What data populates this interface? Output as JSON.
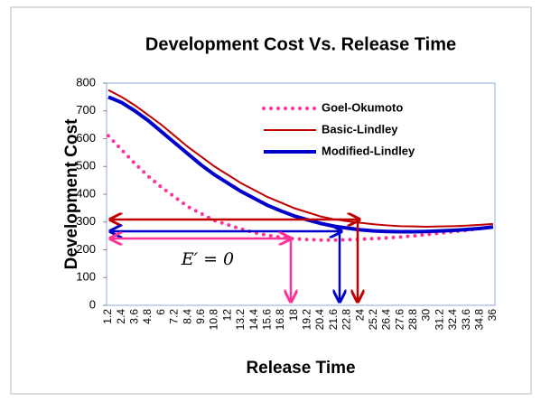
{
  "chart_data": {
    "type": "line",
    "title": "Development Cost  Vs. Release Time",
    "x_label": "Release Time",
    "y_label": "Development Cost",
    "annotation": "E′ = 0",
    "categories": [
      "1.2",
      "2.4",
      "3.6",
      "4.8",
      "6",
      "7.2",
      "8.4",
      "9.6",
      "10.8",
      "12",
      "13.2",
      "14.4",
      "15.6",
      "16.8",
      "18",
      "19.2",
      "20.4",
      "21.6",
      "22.8",
      "24",
      "25.2",
      "26.4",
      "27.6",
      "28.8",
      "30",
      "31.2",
      "32.4",
      "33.6",
      "34.8",
      "36"
    ],
    "series": [
      {
        "name": "Goel-Okumoto",
        "color": "#ff3399",
        "dash": "dotted",
        "values": [
          610,
          560,
          510,
          465,
          425,
          390,
          355,
          330,
          305,
          290,
          275,
          262,
          252,
          245,
          240,
          237,
          235,
          235,
          236,
          238,
          240,
          243,
          246,
          250,
          255,
          260,
          265,
          270,
          276,
          282
        ]
      },
      {
        "name": "Basic-Lindley",
        "color": "#c00000",
        "dash": "solid",
        "values": [
          775,
          750,
          720,
          685,
          650,
          610,
          570,
          535,
          500,
          470,
          440,
          415,
          390,
          370,
          350,
          335,
          320,
          310,
          303,
          297,
          292,
          288,
          285,
          284,
          283,
          284,
          285,
          287,
          290,
          293
        ]
      },
      {
        "name": "Modified-Lindley",
        "color": "#0000cc",
        "dash": "solid",
        "values": [
          750,
          730,
          700,
          665,
          625,
          585,
          545,
          505,
          470,
          440,
          410,
          385,
          360,
          340,
          322,
          308,
          295,
          285,
          278,
          272,
          268,
          266,
          265,
          265,
          266,
          268,
          270,
          273,
          277,
          282
        ]
      }
    ],
    "ylim": [
      0,
      800
    ],
    "yticks": [
      0,
      100,
      200,
      300,
      400,
      500,
      600,
      700,
      800
    ],
    "legend": "upper right"
  }
}
